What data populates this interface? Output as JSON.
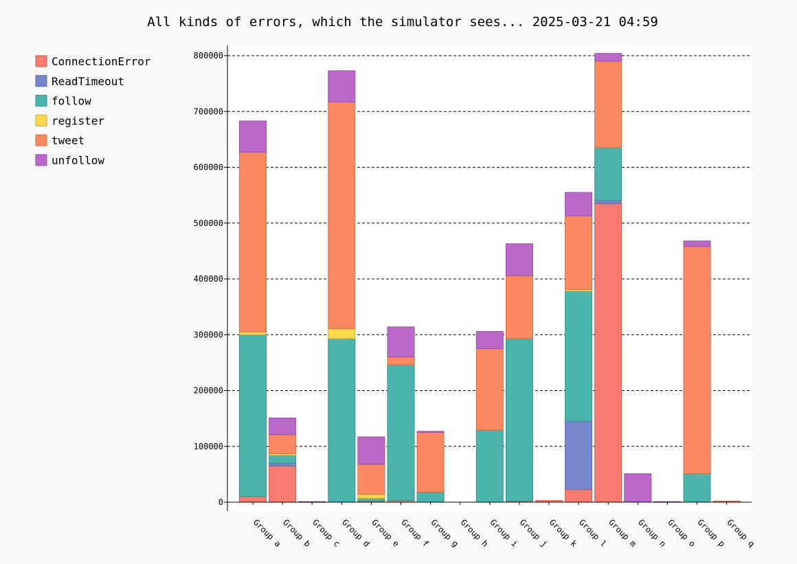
{
  "chart_data": {
    "type": "bar",
    "stacked": true,
    "title": "All kinds of errors, which the simulator sees... 2025-03-21 04:59",
    "xlabel": "",
    "ylabel": "",
    "ylim": [
      0,
      820000
    ],
    "yticks": [
      0,
      100000,
      200000,
      300000,
      400000,
      500000,
      600000,
      700000,
      800000
    ],
    "grid": "horizontal dashed",
    "legend_position": "top-left",
    "categories": [
      "Group a",
      "Group b",
      "Group c",
      "Group d",
      "Group e",
      "Group f",
      "Group g",
      "Group h",
      "Group i",
      "Group j",
      "Group k",
      "Group l",
      "Group m",
      "Group n",
      "Group o",
      "Group p",
      "Group q"
    ],
    "series": [
      {
        "name": "ConnectionError",
        "color": "#f77b6e",
        "values": [
          10000,
          65000,
          0,
          0,
          2000,
          3000,
          0,
          0,
          0,
          2000,
          3000,
          23000,
          535000,
          0,
          0,
          0,
          2000
        ]
      },
      {
        "name": "ReadTimeout",
        "color": "#7586cc",
        "values": [
          0,
          5000,
          0,
          0,
          0,
          0,
          0,
          0,
          0,
          0,
          0,
          122000,
          6000,
          0,
          0,
          0,
          0
        ]
      },
      {
        "name": "follow",
        "color": "#4bb5ad",
        "values": [
          290000,
          14000,
          0,
          293000,
          5000,
          243000,
          18000,
          0,
          129000,
          291000,
          0,
          233000,
          94000,
          0,
          0,
          51000,
          0
        ]
      },
      {
        "name": "register",
        "color": "#fdd74c",
        "values": [
          5000,
          3000,
          0,
          18000,
          7000,
          0,
          0,
          0,
          0,
          0,
          0,
          3000,
          0,
          0,
          0,
          0,
          0
        ]
      },
      {
        "name": "tweet",
        "color": "#fd8960",
        "values": [
          322000,
          34000,
          0,
          406000,
          54000,
          14000,
          107000,
          0,
          146000,
          113000,
          0,
          132000,
          155000,
          0,
          0,
          407000,
          0
        ]
      },
      {
        "name": "unfollow",
        "color": "#ba68c8",
        "values": [
          56000,
          30000,
          1000,
          56000,
          49000,
          54000,
          2000,
          0,
          31000,
          57000,
          0,
          42000,
          14000,
          51000,
          1000,
          10000,
          0
        ]
      }
    ]
  }
}
